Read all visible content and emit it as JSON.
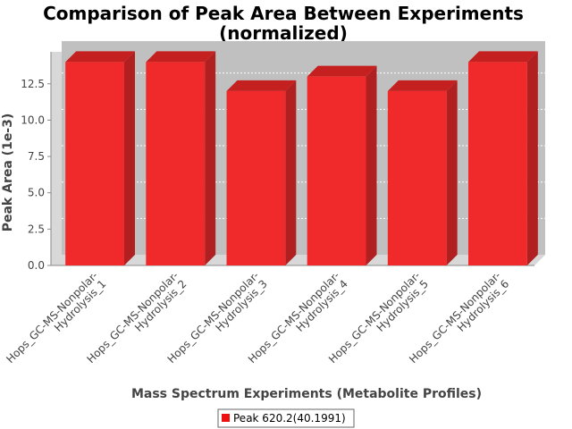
{
  "chart_data": {
    "type": "bar",
    "title": "Comparison of Peak Area Between Experiments",
    "subtitle": "(normalized)",
    "xlabel": "Mass Spectrum Experiments (Metabolite Profiles)",
    "ylabel": "Peak Area (1e-3)",
    "categories": [
      [
        "Hops_GC-MS-Nonpolar-",
        "Hydrolysis_1"
      ],
      [
        "Hops_GC-MS-Nonpolar-",
        "Hydrolysis_2"
      ],
      [
        "Hops_GC-MS-Nonpolar-",
        "Hydrolysis_3"
      ],
      [
        "Hops_GC-MS-Nonpolar-",
        "Hydrolysis_4"
      ],
      [
        "Hops_GC-MS-Nonpolar-",
        "Hydrolysis_5"
      ],
      [
        "Hops_GC-MS-Nonpolar-",
        "Hydrolysis_6"
      ]
    ],
    "series": [
      {
        "name": "Peak 620.2(40.1991)",
        "values": [
          14.0,
          14.0,
          12.0,
          13.0,
          12.0,
          14.0
        ]
      }
    ],
    "ylim": [
      0,
      14.7
    ],
    "yticks": [
      "0.0",
      "2.5",
      "5.0",
      "7.5",
      "10.0",
      "12.5"
    ],
    "grid": true,
    "legend_position": "bottom",
    "colors": {
      "bar": "#f02a2a",
      "bar_top": "#c42020",
      "bar_side": "#b02020",
      "plot_bg": "#c0c0c0",
      "plot_wall": "#d8d8d8"
    }
  }
}
